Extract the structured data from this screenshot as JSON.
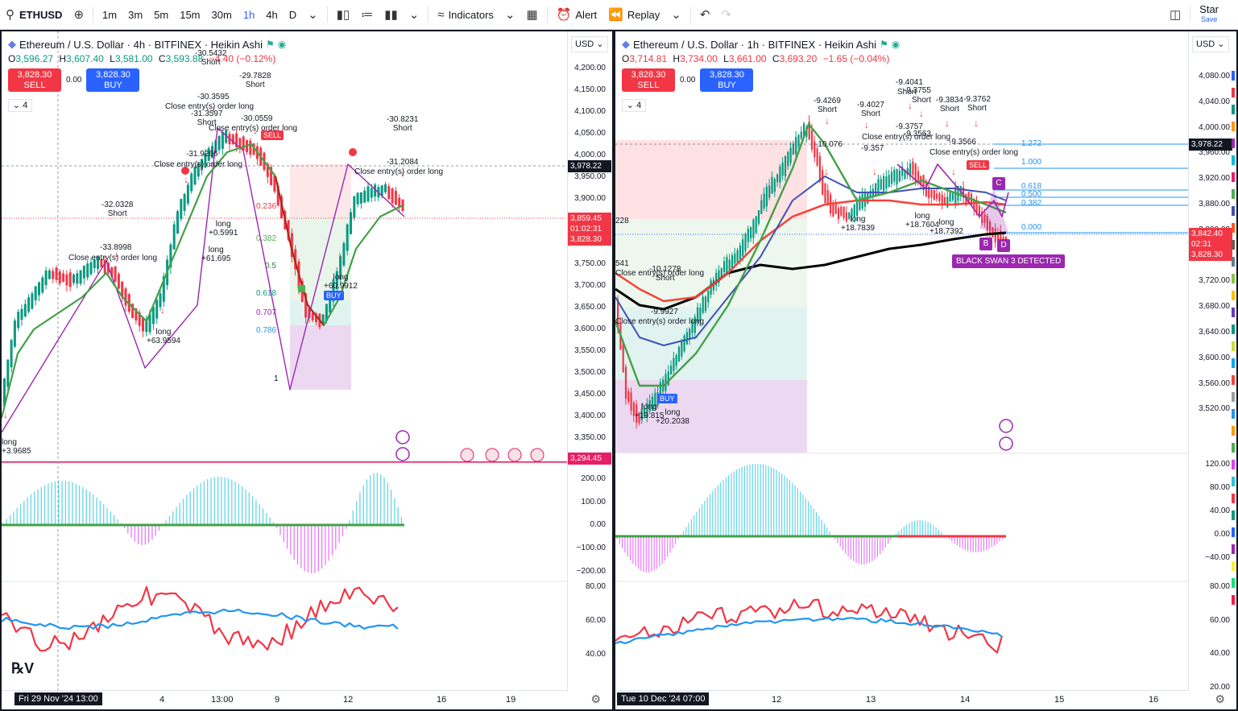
{
  "toolbar": {
    "symbol": "ETHUSD",
    "intervals": [
      "1m",
      "3m",
      "5m",
      "15m",
      "30m",
      "1h",
      "4h",
      "D"
    ],
    "active_interval": "1h",
    "indicators_label": "Indicators",
    "alert_label": "Alert",
    "replay_label": "Replay",
    "user_label": "Star",
    "save_label": "Save"
  },
  "left": {
    "title": "Ethereum / U.S. Dollar · 4h · BITFINEX · Heikin Ashi",
    "ohlc": {
      "o": "3,596.27",
      "h": "3,607.40",
      "l": "3,581.00",
      "c": "3,593.88",
      "chg": "−4.40 (−0.12%)"
    },
    "sell_price": "3,828.30",
    "sell_label": "SELL",
    "buy_price": "3,828.30",
    "buy_label": "BUY",
    "spread": "0.00",
    "collapse_count": "4",
    "currency": "USD",
    "price_ticks": [
      "4,200.00",
      "4,150.00",
      "4,100.00",
      "4,050.00",
      "4,000.00",
      "3,950.00",
      "3,900.00",
      "3,850.00",
      "3,800.00",
      "3,750.00",
      "3,700.00",
      "3,650.00",
      "3,600.00",
      "3,550.00",
      "3,500.00",
      "3,450.00",
      "3,400.00",
      "3,350.00"
    ],
    "price_tags": {
      "crosshair": "3,978.22",
      "last": "3,859.45",
      "countdown": "01:02:31",
      "bid": "3,828.30",
      "support": "3,294.45"
    },
    "osc_ticks": [
      "200.00",
      "100.00",
      "0.00",
      "−100.00",
      "−200.00"
    ],
    "rsi_ticks": [
      "80.00",
      "60.00",
      "40.00"
    ],
    "time_labels": [
      "4",
      "13:00",
      "9",
      "12",
      "16",
      "19"
    ],
    "time_tag": "Fri 29 Nov '24   13:00",
    "fib_levels": [
      "0.236",
      "0.382",
      "0.5",
      "0.618",
      "0.707",
      "0.786",
      "1"
    ],
    "annotations": {
      "a1": "-30.5432",
      "a1b": "Short",
      "a2": "-29.7828",
      "a2b": "Short",
      "a3": "-30.3595",
      "a4": "Close entry(s) order long",
      "a5": "-31.3597",
      "a5b": "Short",
      "a6": "-30.0559",
      "a7": "Close entry(s) order long",
      "a8": "-31.9266",
      "a9": "Close entry(s) order long",
      "a10": "-32.0328",
      "a10b": "Short",
      "a11": "-33.8998",
      "a12": "Close entry(s) order long",
      "a13": "long",
      "a13b": "+0.5991",
      "a14": "long",
      "a14b": "+61.695",
      "a15": "long",
      "a15b": "+63.9594",
      "a16": "-30.8231",
      "a16b": "Short",
      "a17": "-31.2084",
      "a18": "Close entry(s) order long",
      "a19": "long",
      "a19b": "+60.9912",
      "a20": "long",
      "a20b": "+3.9685"
    },
    "sell_tag": "SELL",
    "buy_tag": "BUY"
  },
  "right": {
    "title": "Ethereum / U.S. Dollar · 1h · BITFINEX · Heikin Ashi",
    "ohlc": {
      "o": "3,714.81",
      "h": "3,734.00",
      "l": "3,661.00",
      "c": "3,693.20",
      "chg": "−1.65 (−0.04%)"
    },
    "sell_price": "3,828.30",
    "sell_label": "SELL",
    "buy_price": "3,828.30",
    "buy_label": "BUY",
    "spread": "0.00",
    "collapse_count": "4",
    "currency": "USD",
    "price_ticks": [
      "4,080.00",
      "4,040.00",
      "4,000.00",
      "3,960.00",
      "3,920.00",
      "3,880.00",
      "3,800.00",
      "3,760.00",
      "3,720.00",
      "3,680.00",
      "3,640.00",
      "3,600.00",
      "3,560.00",
      "3,520.00"
    ],
    "price_tags": {
      "crosshair": "3,978.22",
      "last": "3,842.40",
      "countdown": "02:31",
      "bid": "3,828.30"
    },
    "osc_ticks": [
      "120.00",
      "80.00",
      "40.00",
      "0.00",
      "−40.00"
    ],
    "rsi_ticks": [
      "80.00",
      "60.00",
      "40.00",
      "20.00"
    ],
    "time_labels": [
      "12",
      "13",
      "14",
      "15",
      "16"
    ],
    "time_tag": "Tue 10 Dec '24   07:00",
    "fib_levels": [
      "1.272",
      "1.000",
      "0.618",
      "0.500",
      "0.382",
      "0.000"
    ],
    "pattern_label": "BLACK SWAN 3 DETECTED",
    "abcd": [
      "C",
      "B",
      "D"
    ],
    "annotations": {
      "b1": "-9.4041",
      "b2": "-9.3755",
      "b3": "Short",
      "b3b": "Short",
      "b4": "-9.4269",
      "b4b": "Short",
      "b5": "-9.4027",
      "b5b": "Short",
      "b6": "-9.3834",
      "b6b": "Short",
      "b7": "-9.3762",
      "b7b": "Short",
      "b8": "-9.3757",
      "b9": "-9.3563",
      "b10": "Close entry(s) order long",
      "b11": "-10.076",
      "b12": "-9.357",
      "b13": "-9.3566",
      "b14": "Close entry(s) order long",
      "b15": "long",
      "b15b": "+18.7839",
      "b16": "long",
      "b16b": "+18.7604",
      "b17": "long",
      "b17b": "+18.7392",
      "b18": "-10.1278",
      "b18b": "Short",
      "b19": "-9.9927",
      "b20": "Close entry(s) order long",
      "b21": "long",
      "b21b": "+19.815",
      "b22": "long",
      "b22b": "+20.2038",
      "b23": "228",
      "b24": "541",
      "b25": "Close entry(s) order long"
    },
    "sell_tag": "SELL",
    "buy_tag": "BUY"
  },
  "colors": {
    "up": "#089981",
    "down": "#f23645",
    "accent": "#2962ff",
    "purple": "#9c27b0",
    "green_ma": "#43a047"
  }
}
